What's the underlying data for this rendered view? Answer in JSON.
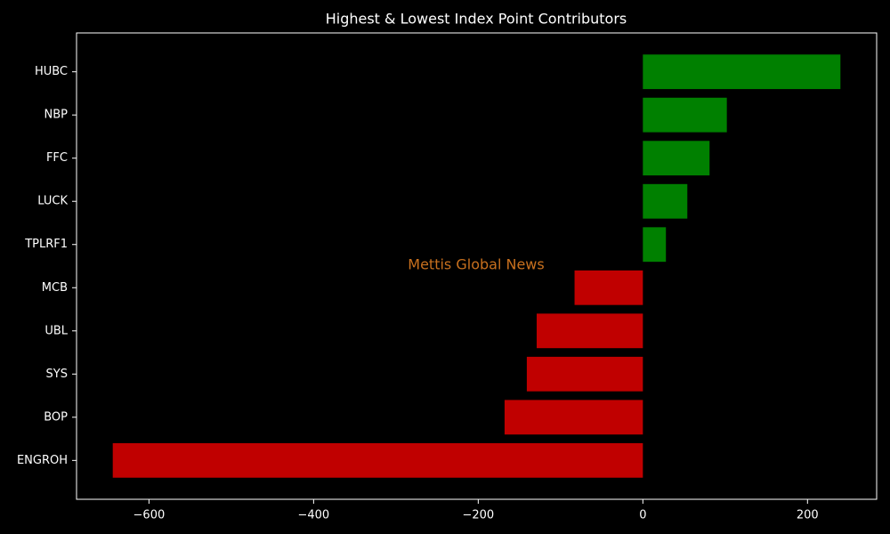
{
  "chart_data": {
    "type": "barh",
    "title": "Highest & Lowest Index Point Contributors",
    "annotation": "Mettis Global News",
    "categories": [
      "HUBC",
      "NBP",
      "FFC",
      "LUCK",
      "TPLRF1",
      "MCB",
      "UBL",
      "SYS",
      "BOP",
      "ENGROH"
    ],
    "values": [
      240,
      102,
      81,
      54,
      28,
      -83,
      -129,
      -141,
      -168,
      -644
    ],
    "colors": [
      "#008000",
      "#008000",
      "#008000",
      "#008000",
      "#008000",
      "#c00000",
      "#c00000",
      "#c00000",
      "#c00000",
      "#c00000"
    ],
    "xlim": [
      -688,
      284
    ],
    "xticks": [
      {
        "value": -600,
        "label": "−600"
      },
      {
        "value": -400,
        "label": "−400"
      },
      {
        "value": -200,
        "label": "−200"
      },
      0,
      200
    ],
    "grid": false
  }
}
